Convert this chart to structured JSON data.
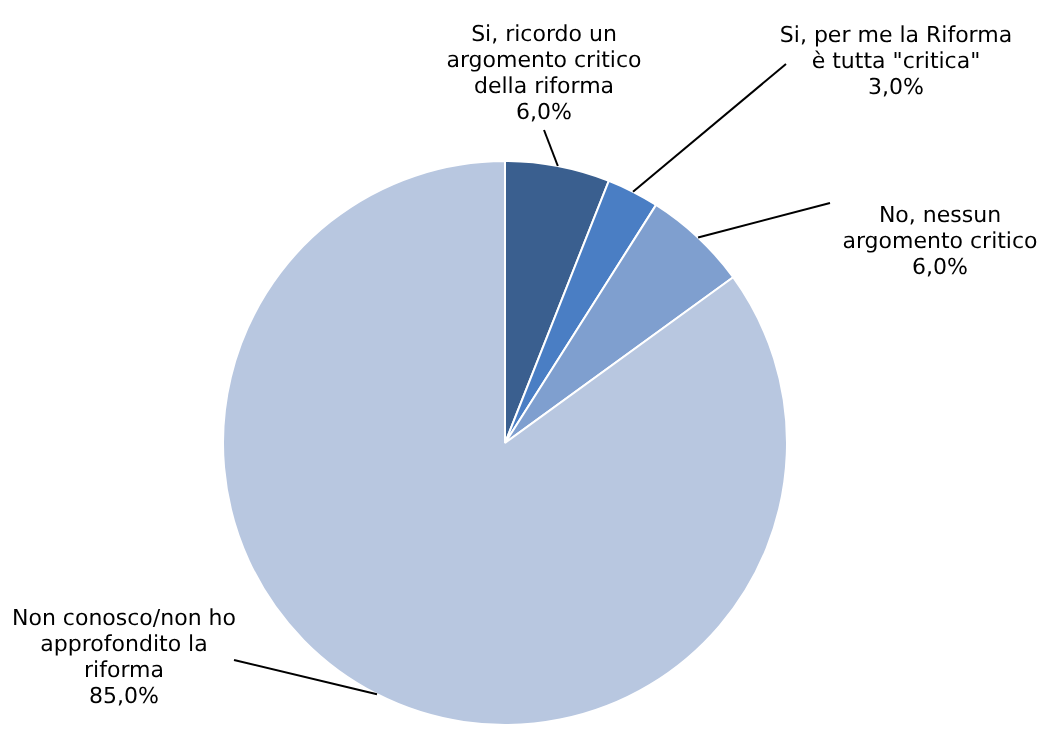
{
  "chart_data": {
    "type": "pie",
    "categories": [
      "Si, ricordo un argomento critico della riforma",
      "Si, per me la Riforma è tutta \"critica\"",
      "No, nessun argomento critico",
      "Non conosco/non ho approfondito la riforma"
    ],
    "values": [
      6,
      3,
      6,
      85
    ],
    "colors": [
      "#3a5f8f",
      "#4a7ec4",
      "#7f9fcf",
      "#b8c7e0"
    ],
    "value_labels": [
      "6,0%",
      "3,0%",
      "6,0%",
      "85,0%"
    ],
    "legend": false
  }
}
